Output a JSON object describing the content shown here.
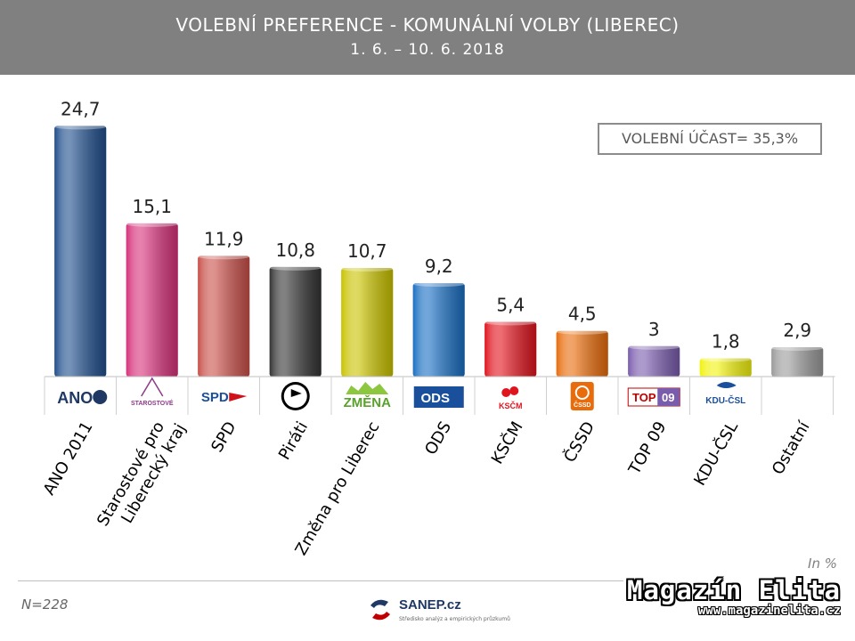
{
  "header": {
    "title": "VOLEBNÍ PREFERENCE - KOMUNÁLNÍ VOLBY (LIBEREC)",
    "subtitle": "1. 6. – 10. 6. 2018"
  },
  "turnout_label": "VOLEBNÍ ÚČAST= 35,3%",
  "unit_label": "In %",
  "sample_label": "N=228",
  "sanep": {
    "name": "SANEP.cz",
    "tagline": "Středisko analýz a empirických průzkumů"
  },
  "watermark": {
    "title": "Magazín Elita",
    "url": "www.magazinelita.cz"
  },
  "chart_data": {
    "type": "bar",
    "categories": [
      "ANO 2011",
      "Starostové pro Liberecký kraj",
      "SPD",
      "Piráti",
      "Změna pro Liberec",
      "ODS",
      "KSČM",
      "ČSSD",
      "TOP 09",
      "KDU-ČSL",
      "Ostatní"
    ],
    "values": [
      24.7,
      15.1,
      11.9,
      10.8,
      10.7,
      9.2,
      5.4,
      4.5,
      3,
      1.8,
      2.9
    ],
    "value_labels": [
      "24,7",
      "15,1",
      "11,9",
      "10,8",
      "10,7",
      "9,2",
      "5,4",
      "4,5",
      "3",
      "1,8",
      "2,9"
    ],
    "colors": [
      "#1f4e8c",
      "#d6317a",
      "#c9504a",
      "#333333",
      "#c9c200",
      "#1a6fc2",
      "#e0141e",
      "#e86c0c",
      "#7a5cad",
      "#f2f20f",
      "#9a9a9a"
    ],
    "logos": [
      "ANO",
      "STAROSTOVÉ",
      "SPD",
      "Piráti",
      "ZMĚNA",
      "ODS",
      "KSČM",
      "ČSSD",
      "TOP09",
      "KDU-ČSL",
      ""
    ],
    "title": "VOLEBNÍ PREFERENCE - KOMUNÁLNÍ VOLBY (LIBEREC)",
    "xlabel": "",
    "ylabel": "In %",
    "ylim": [
      0,
      25
    ],
    "grid": false,
    "legend": "none"
  }
}
